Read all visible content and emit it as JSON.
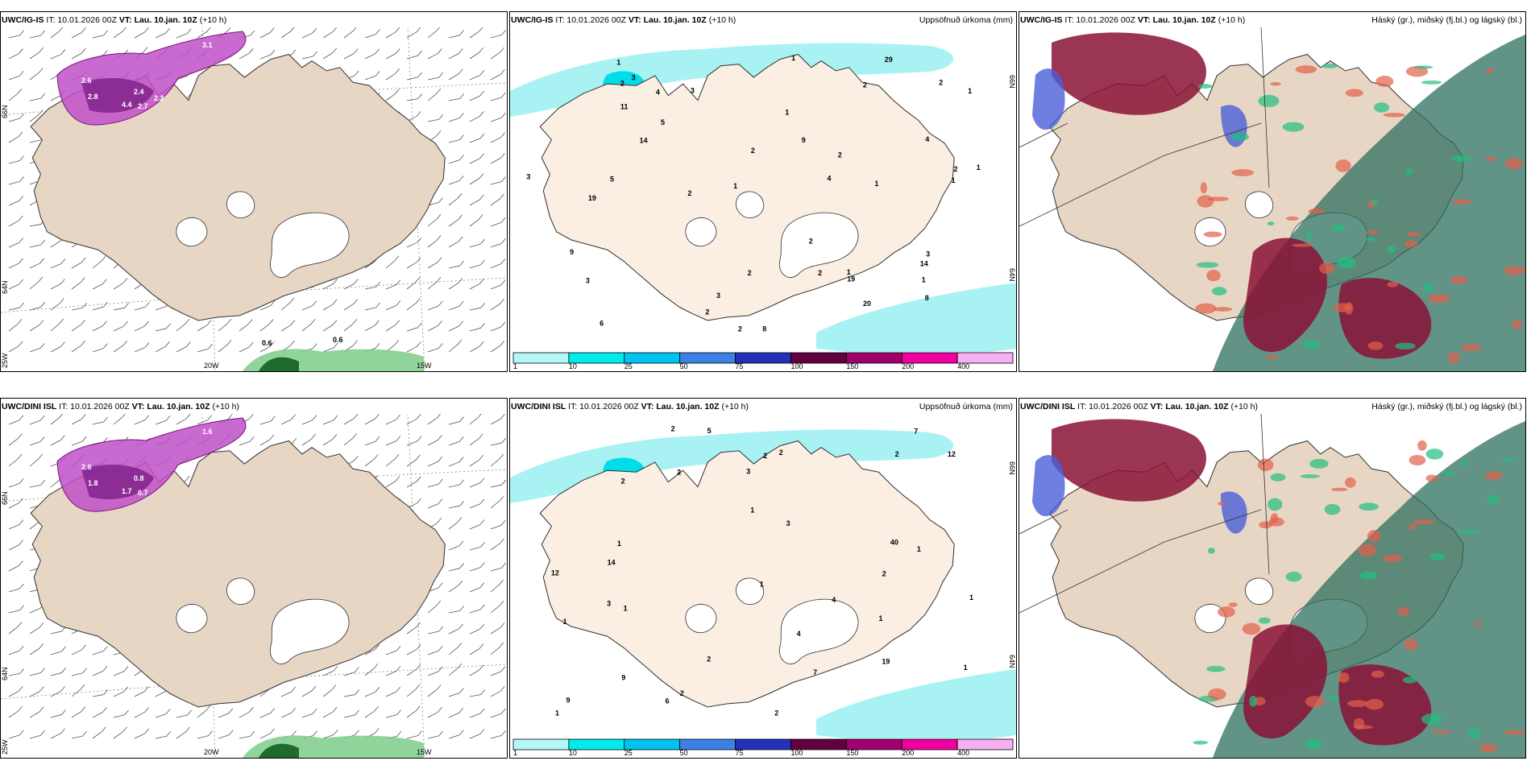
{
  "panels": [
    {
      "id": "p1",
      "model": "UWC/IG-IS",
      "it_label": "IT:",
      "it": "10.01.2026 00Z",
      "vt_label": "VT:",
      "vt": "Lau. 10.jan. 10Z",
      "lead": "(+10 h)",
      "right_title": "",
      "type": "wind",
      "lat_labels": [
        "66N",
        "64N",
        "25W"
      ],
      "lon_labels": [
        "20W",
        "15W"
      ],
      "values": [
        "3.1",
        "2.6",
        "2.8",
        "4.4",
        "2.4",
        "2.7",
        "2.2",
        "0.6",
        "0.6"
      ]
    },
    {
      "id": "p2",
      "model": "UWC/IG-IS",
      "it_label": "IT:",
      "it": "10.01.2026 00Z",
      "vt_label": "VT:",
      "vt": "Lau. 10.jan. 10Z",
      "lead": "(+10 h)",
      "right_title": "Uppsöfnuð úrkoma (mm)",
      "type": "precip",
      "lat_labels": [
        "66N",
        "64N"
      ],
      "values": [
        "2",
        "5",
        "4",
        "3",
        "8",
        "11",
        "5",
        "29",
        "8",
        "9",
        "14",
        "6",
        "2",
        "1",
        "1",
        "14",
        "19",
        "20",
        "2",
        "3",
        "2",
        "1",
        "2",
        "2",
        "3",
        "2",
        "3",
        "4",
        "3",
        "2",
        "1",
        "2",
        "1",
        "1",
        "1",
        "1",
        "3",
        "2",
        "2",
        "1",
        "1",
        "19",
        "9",
        "4",
        "2"
      ],
      "colorbar": {
        "colors": [
          "#b3f7f7",
          "#00ebeb",
          "#00c3f0",
          "#3c82e6",
          "#2430b8",
          "#600040",
          "#a0006e",
          "#f000a0",
          "#f4b0f0"
        ],
        "ticks": [
          "1",
          "10",
          "25",
          "50",
          "75",
          "100",
          "150",
          "200",
          "400"
        ]
      }
    },
    {
      "id": "p3",
      "model": "UWC/IG-IS",
      "it_label": "IT:",
      "it": "10.01.2026 00Z",
      "vt_label": "VT:",
      "vt": "Lau. 10.jan. 10Z",
      "lead": "(+10 h)",
      "right_title": "Háský (gr.), miðský (fj.bl.) og lágský (bl.)",
      "type": "cloud"
    },
    {
      "id": "p4",
      "model": "UWC/DINI ISL",
      "it_label": "IT:",
      "it": "10.01.2026 00Z",
      "vt_label": "VT:",
      "vt": "Lau. 10.jan. 10Z",
      "lead": "(+10 h)",
      "right_title": "",
      "type": "wind",
      "lat_labels": [
        "66N",
        "64N",
        "25W"
      ],
      "lon_labels": [
        "20W",
        "15W"
      ],
      "values": [
        "1.6",
        "2.6",
        "1.8",
        "1.7",
        "0.8",
        "0.7"
      ]
    },
    {
      "id": "p5",
      "model": "UWC/DINI ISL",
      "it_label": "IT:",
      "it": "10.01.2026 00Z",
      "vt_label": "VT:",
      "vt": "Lau. 10.jan. 10Z",
      "lead": "(+10 h)",
      "right_title": "Uppsöfnuð úrkoma (mm)",
      "type": "precip",
      "lat_labels": [
        "66N",
        "64N"
      ],
      "values": [
        "1",
        "9",
        "19",
        "12",
        "2",
        "1",
        "4",
        "9",
        "40",
        "5",
        "14",
        "7",
        "2",
        "2",
        "2",
        "3",
        "2",
        "4",
        "1",
        "1",
        "2",
        "1",
        "2",
        "2",
        "1",
        "1",
        "6",
        "2",
        "1",
        "1",
        "2",
        "1",
        "3",
        "7",
        "3",
        "12"
      ],
      "colorbar": {
        "colors": [
          "#b3f7f7",
          "#00ebeb",
          "#00c3f0",
          "#3c82e6",
          "#2430b8",
          "#600040",
          "#a0006e",
          "#f000a0",
          "#f4b0f0"
        ],
        "ticks": [
          "1",
          "10",
          "25",
          "50",
          "75",
          "100",
          "150",
          "200",
          "400"
        ]
      }
    },
    {
      "id": "p6",
      "model": "UWC/DINI ISL",
      "it_label": "IT:",
      "it": "10.01.2026 00Z",
      "vt_label": "VT:",
      "vt": "Lau. 10.jan. 10Z",
      "lead": "(+10 h)",
      "right_title": "Háský (gr.), miðský (fj.bl.) og lágský (bl.)",
      "type": "cloud"
    }
  ]
}
